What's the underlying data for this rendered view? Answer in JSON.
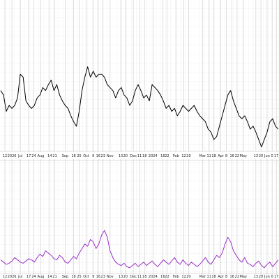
{
  "chart_data": [
    {
      "type": "line",
      "x": [
        0,
        1,
        2,
        3,
        4,
        5,
        6,
        7,
        8,
        9,
        10,
        11,
        12,
        13,
        14,
        15,
        16,
        17,
        18,
        19,
        20,
        21,
        22,
        23,
        24,
        25,
        26,
        27,
        28,
        29,
        30,
        31,
        32,
        33,
        34,
        35,
        36,
        37,
        38,
        39,
        40,
        41,
        42,
        43,
        44,
        45,
        46,
        47,
        48,
        49,
        50,
        51,
        52,
        53,
        54,
        55,
        56,
        57,
        58,
        59,
        60,
        61,
        62,
        63,
        64,
        65,
        66,
        67,
        68,
        69,
        70,
        71,
        72,
        73,
        74,
        75,
        76,
        77,
        78,
        79,
        80,
        81,
        82,
        83,
        84,
        85,
        86,
        87,
        88,
        89,
        90,
        91,
        92,
        93,
        94,
        95,
        96,
        97,
        98,
        99
      ],
      "series": [
        {
          "color": "#000000",
          "values": [
            40,
            37,
            26,
            30,
            28,
            30,
            35,
            51,
            49,
            33,
            30,
            28,
            30,
            35,
            37,
            42,
            40,
            44,
            47,
            40,
            44,
            37,
            33,
            30,
            28,
            23,
            19,
            16,
            26,
            40,
            49,
            56,
            49,
            53,
            49,
            51,
            51,
            49,
            44,
            42,
            40,
            35,
            40,
            42,
            37,
            35,
            30,
            33,
            40,
            44,
            40,
            35,
            37,
            33,
            44,
            42,
            40,
            37,
            33,
            28,
            30,
            26,
            28,
            23,
            26,
            30,
            28,
            26,
            28,
            30,
            26,
            23,
            21,
            19,
            14,
            12,
            7,
            9,
            16,
            23,
            30,
            37,
            40,
            33,
            28,
            23,
            21,
            23,
            19,
            14,
            16,
            12,
            7,
            2,
            7,
            12,
            19,
            21,
            16,
            14
          ]
        }
      ],
      "xlim": [
        0,
        99
      ],
      "ylim": [
        0,
        100
      ],
      "xticks": [
        {
          "value": 1.5,
          "label": "12"
        },
        {
          "value": 4,
          "label": "2026"
        },
        {
          "value": 7,
          "label": "Jul"
        },
        {
          "value": 10,
          "label": "17"
        },
        {
          "value": 11.8,
          "label": "24"
        },
        {
          "value": 14.3,
          "label": "Aug"
        },
        {
          "value": 17.5,
          "label": "14"
        },
        {
          "value": 19.3,
          "label": "21"
        },
        {
          "value": 23,
          "label": "Sep"
        },
        {
          "value": 26,
          "label": "18"
        },
        {
          "value": 28,
          "label": "25"
        },
        {
          "value": 30.5,
          "label": "Oct"
        },
        {
          "value": 33,
          "label": "9"
        },
        {
          "value": 34.8,
          "label": "16"
        },
        {
          "value": 36.5,
          "label": "23"
        },
        {
          "value": 39,
          "label": "Nov"
        },
        {
          "value": 42.8,
          "label": "13"
        },
        {
          "value": 44.5,
          "label": "20"
        },
        {
          "value": 47.3,
          "label": "Dec"
        },
        {
          "value": 49.5,
          "label": "11"
        },
        {
          "value": 51.3,
          "label": "18"
        },
        {
          "value": 54.3,
          "label": "2024"
        },
        {
          "value": 57.8,
          "label": "16"
        },
        {
          "value": 59.3,
          "label": "22"
        },
        {
          "value": 62.5,
          "label": "Feb"
        },
        {
          "value": 65.3,
          "label": "12"
        },
        {
          "value": 67,
          "label": "20"
        },
        {
          "value": 72,
          "label": "Mar"
        },
        {
          "value": 74.3,
          "label": "11"
        },
        {
          "value": 76,
          "label": "18"
        },
        {
          "value": 78.5,
          "label": "Apr"
        },
        {
          "value": 80.5,
          "label": "8"
        },
        {
          "value": 82.5,
          "label": "16"
        },
        {
          "value": 84.3,
          "label": "22"
        },
        {
          "value": 86.5,
          "label": "May"
        },
        {
          "value": 91,
          "label": "13"
        },
        {
          "value": 92.8,
          "label": "20"
        },
        {
          "value": 95,
          "label": "Jun"
        },
        {
          "value": 96.8,
          "label": "0"
        },
        {
          "value": 98.3,
          "label": "17"
        }
      ],
      "grid": true
    },
    {
      "type": "line",
      "x": [
        0,
        1,
        2,
        3,
        4,
        5,
        6,
        7,
        8,
        9,
        10,
        11,
        12,
        13,
        14,
        15,
        16,
        17,
        18,
        19,
        20,
        21,
        22,
        23,
        24,
        25,
        26,
        27,
        28,
        29,
        30,
        31,
        32,
        33,
        34,
        35,
        36,
        37,
        38,
        39,
        40,
        41,
        42,
        43,
        44,
        45,
        46,
        47,
        48,
        49,
        50,
        51,
        52,
        53,
        54,
        55,
        56,
        57,
        58,
        59,
        60,
        61,
        62,
        63,
        64,
        65,
        66,
        67,
        68,
        69,
        70,
        71,
        72,
        73,
        74,
        75,
        76,
        77,
        78,
        79,
        80,
        81,
        82,
        83,
        84,
        85,
        86,
        87,
        88,
        89,
        90,
        91,
        92,
        93,
        94,
        95,
        96,
        97,
        98,
        99
      ],
      "series": [
        {
          "color": "#9b30c8",
          "values": [
            12,
            10,
            8,
            9,
            11,
            14,
            12,
            10,
            9,
            11,
            13,
            12,
            10,
            14,
            17,
            15,
            20,
            18,
            16,
            13,
            12,
            16,
            14,
            10,
            9,
            12,
            15,
            13,
            18,
            22,
            26,
            24,
            30,
            28,
            22,
            26,
            34,
            38,
            32,
            20,
            14,
            10,
            8,
            7,
            9,
            6,
            5,
            7,
            9,
            6,
            8,
            10,
            7,
            9,
            11,
            8,
            6,
            9,
            12,
            10,
            8,
            11,
            14,
            10,
            8,
            12,
            9,
            7,
            10,
            8,
            6,
            8,
            11,
            14,
            10,
            8,
            12,
            16,
            14,
            18,
            26,
            32,
            28,
            20,
            16,
            12,
            10,
            14,
            9,
            8,
            6,
            9,
            11,
            7,
            5,
            8,
            10,
            6,
            9,
            12
          ]
        }
      ],
      "xlim": [
        0,
        99
      ],
      "ylim": [
        0,
        100
      ],
      "grid": true
    }
  ]
}
